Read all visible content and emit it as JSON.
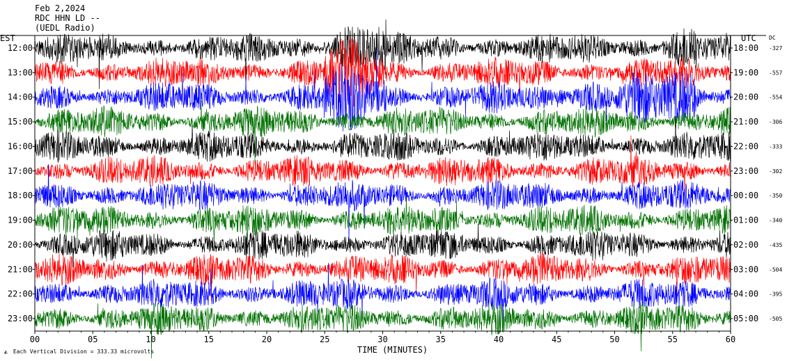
{
  "header": {
    "date": "Feb 2,2024",
    "station": "RDC HHN LD --",
    "network": "(UEDL Radio)"
  },
  "footer": {
    "scale_note": "Each Vertical Division =  333.33 microvolts"
  },
  "chart_data": {
    "type": "line",
    "title": "",
    "xlabel": "TIME (MINUTES)",
    "xlim": [
      0,
      60
    ],
    "x_ticks": [
      "00",
      "05",
      "10",
      "15",
      "20",
      "25",
      "30",
      "35",
      "40",
      "45",
      "50",
      "55",
      "60"
    ],
    "left_axis_title": "EST",
    "right_axis_title": "UTC",
    "dc_title": "DC",
    "trace_colors": [
      "#000000",
      "#ff0000",
      "#0000ff",
      "#007000"
    ],
    "rows": [
      {
        "est": "12:00",
        "utc": "18:00",
        "dc": "-327"
      },
      {
        "est": "13:00",
        "utc": "19:00",
        "dc": "-557"
      },
      {
        "est": "14:00",
        "utc": "20:00",
        "dc": "-554"
      },
      {
        "est": "15:00",
        "utc": "21:00",
        "dc": "-306"
      },
      {
        "est": "16:00",
        "utc": "22:00",
        "dc": "-333"
      },
      {
        "est": "17:00",
        "utc": "23:00",
        "dc": "-302"
      },
      {
        "est": "18:00",
        "utc": "00:00",
        "dc": "-350"
      },
      {
        "est": "19:00",
        "utc": "01:00",
        "dc": "-340"
      },
      {
        "est": "20:00",
        "utc": "02:00",
        "dc": "-435"
      },
      {
        "est": "21:00",
        "utc": "03:00",
        "dc": "-504"
      },
      {
        "est": "22:00",
        "utc": "04:00",
        "dc": "-395"
      },
      {
        "est": "23:00",
        "utc": "05:00",
        "dc": "-505"
      }
    ]
  }
}
